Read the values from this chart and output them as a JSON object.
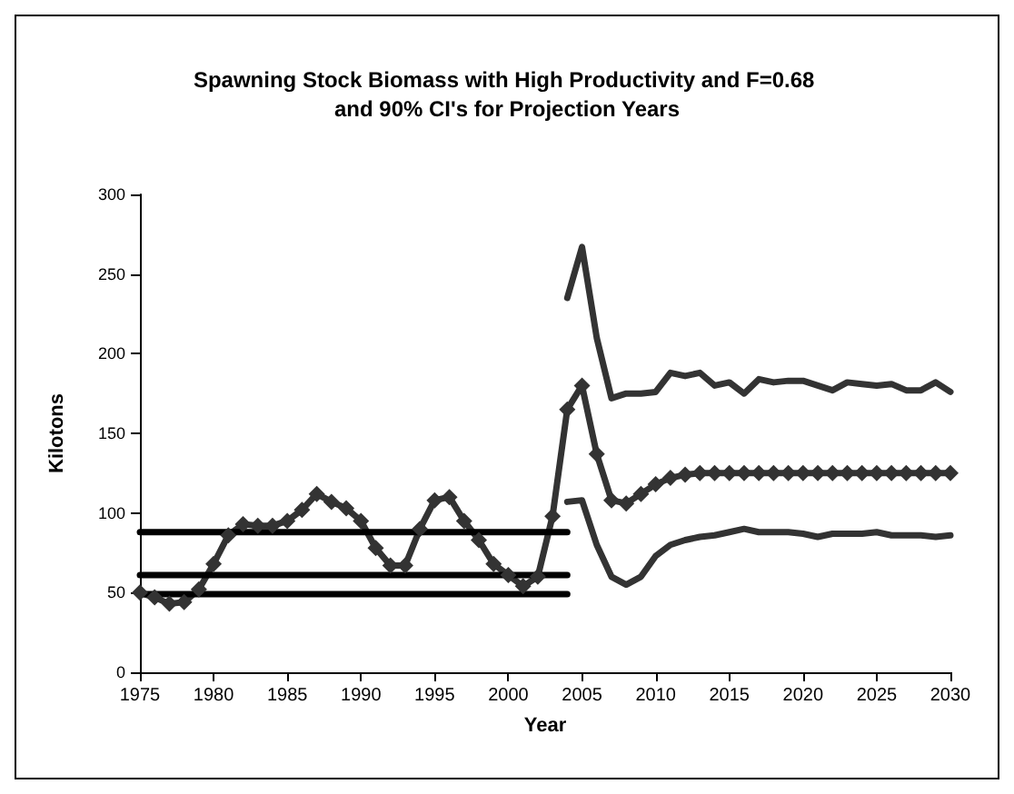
{
  "chart_data": {
    "type": "line",
    "title": "Spawning Stock Biomass with High Productivity and F=0.68 and 90% CI's for Projection Years",
    "xlabel": "Year",
    "ylabel": "Kilotons",
    "xlim": [
      1975,
      2030
    ],
    "xticks": [
      1975,
      1980,
      1985,
      1990,
      1995,
      2000,
      2005,
      2010,
      2015,
      2020,
      2025,
      2030
    ],
    "ylim": [
      0,
      300
    ],
    "yticks": [
      0,
      50,
      100,
      150,
      200,
      250,
      300
    ],
    "grid": false,
    "series": [
      {
        "color": "#333333",
        "marker": "diamond",
        "x": [
          1975,
          1976,
          1977,
          1978,
          1979,
          1980,
          1981,
          1982,
          1983,
          1984,
          1985,
          1986,
          1987,
          1988,
          1989,
          1990,
          1991,
          1992,
          1993,
          1994,
          1995,
          1996,
          1997,
          1998,
          1999,
          2000,
          2001,
          2002,
          2003,
          2004,
          2005,
          2006,
          2007,
          2008,
          2009,
          2010,
          2011,
          2012,
          2013,
          2014,
          2015,
          2016,
          2017,
          2018,
          2019,
          2020,
          2021,
          2022,
          2023,
          2024,
          2025,
          2026,
          2027,
          2028,
          2029,
          2030
        ],
        "values": [
          50,
          47,
          43,
          44,
          52,
          68,
          86,
          93,
          92,
          92,
          95,
          102,
          112,
          107,
          103,
          95,
          78,
          67,
          67,
          90,
          108,
          110,
          95,
          83,
          68,
          61,
          54,
          60,
          98,
          165,
          180,
          137,
          108,
          106,
          112,
          118,
          122,
          124,
          125,
          125,
          125,
          125,
          125,
          125,
          125,
          125,
          125,
          125,
          125,
          125,
          125,
          125,
          125,
          125,
          125,
          125
        ]
      },
      {
        "color": "#333333",
        "marker": "none",
        "x": [
          2004,
          2005,
          2006,
          2007,
          2008,
          2009,
          2010,
          2011,
          2012,
          2013,
          2014,
          2015,
          2016,
          2017,
          2018,
          2019,
          2020,
          2021,
          2022,
          2023,
          2024,
          2025,
          2026,
          2027,
          2028,
          2029,
          2030
        ],
        "values": [
          235,
          267,
          210,
          172,
          175,
          175,
          176,
          188,
          186,
          188,
          180,
          182,
          175,
          184,
          182,
          183,
          183,
          180,
          177,
          182,
          181,
          180,
          181,
          177,
          177,
          182,
          176
        ]
      },
      {
        "color": "#333333",
        "marker": "none",
        "x": [
          2004,
          2005,
          2006,
          2007,
          2008,
          2009,
          2010,
          2011,
          2012,
          2013,
          2014,
          2015,
          2016,
          2017,
          2018,
          2019,
          2020,
          2021,
          2022,
          2023,
          2024,
          2025,
          2026,
          2027,
          2028,
          2029,
          2030
        ],
        "values": [
          107,
          108,
          80,
          60,
          55,
          60,
          73,
          80,
          83,
          85,
          86,
          88,
          90,
          88,
          88,
          88,
          87,
          85,
          87,
          87,
          87,
          88,
          86,
          86,
          86,
          85,
          86
        ]
      },
      {
        "color": "#000000",
        "marker": "none",
        "x": [
          1975,
          2004
        ],
        "values": [
          88,
          88
        ]
      },
      {
        "color": "#000000",
        "marker": "none",
        "x": [
          1975,
          2004
        ],
        "values": [
          61,
          61
        ]
      },
      {
        "color": "#000000",
        "marker": "none",
        "x": [
          1975,
          2004
        ],
        "values": [
          49,
          49
        ]
      }
    ]
  }
}
